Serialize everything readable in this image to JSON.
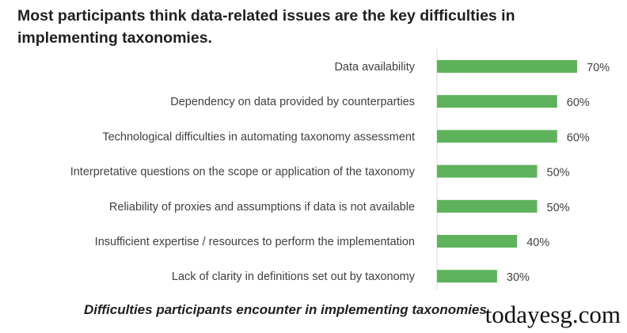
{
  "headline": "Most participants think data-related issues are the key difficulties in implementing taxonomies.",
  "caption": "Difficulties participants encounter in implementing taxonomies",
  "watermark": "todayesg.com",
  "chart_data": {
    "type": "bar",
    "orientation": "horizontal",
    "categories": [
      "Data availability",
      "Dependency on data provided by counterparties",
      "Technological difficulties in automating taxonomy assessment",
      "Interpretative questions on the scope or application of the taxonomy",
      "Reliability of proxies and assumptions if data is not available",
      "Insufficient expertise / resources to perform the implementation",
      "Lack of clarity in definitions set out by taxonomy"
    ],
    "values": [
      70,
      60,
      60,
      50,
      50,
      40,
      30
    ],
    "value_labels": [
      "70%",
      "60%",
      "60%",
      "50%",
      "50%",
      "40%",
      "30%"
    ],
    "unit": "%",
    "xlim": [
      0,
      100
    ],
    "grid": false,
    "legend": "none",
    "bar_color": "#5fb25c",
    "axis_color": "#d9d9d9"
  }
}
